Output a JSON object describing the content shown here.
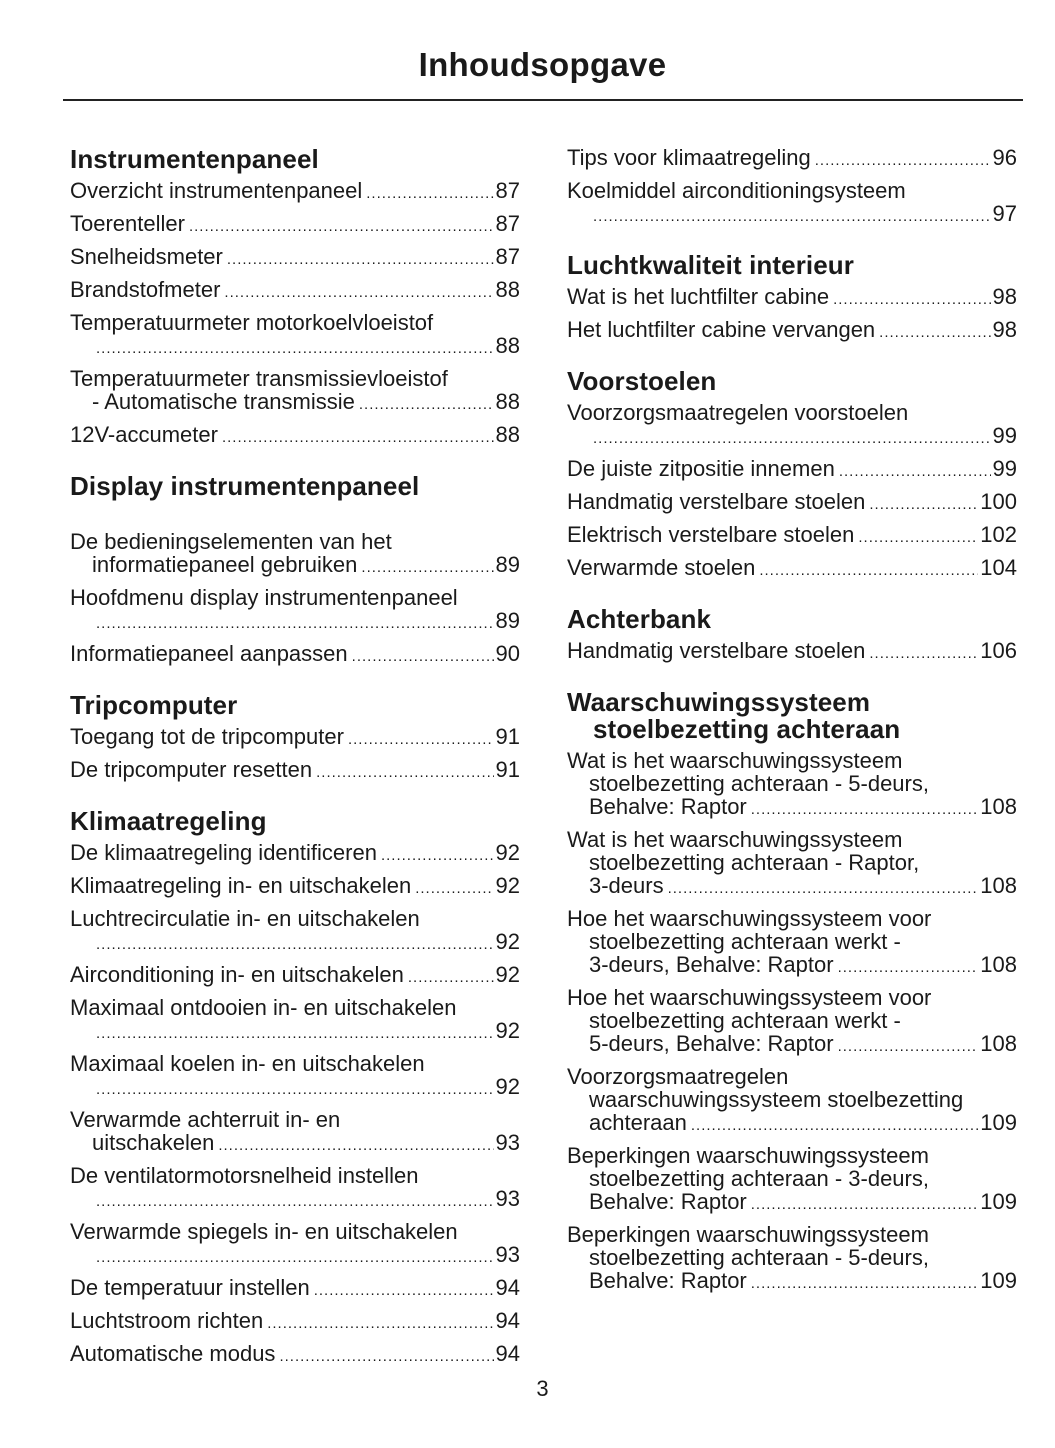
{
  "title": "Inhoudsopgave",
  "page_number": "3",
  "columns": [
    [
      {
        "heading": [
          "Instrumentenpaneel"
        ],
        "entries": [
          {
            "lines": [
              "Overzicht instrumentenpaneel"
            ],
            "page": "87"
          },
          {
            "lines": [
              "Toerenteller"
            ],
            "page": "87"
          },
          {
            "lines": [
              "Snelheidsmeter"
            ],
            "page": "87"
          },
          {
            "lines": [
              "Brandstofmeter"
            ],
            "page": "88"
          },
          {
            "lines": [
              "Temperatuurmeter motorkoelvloeistof",
              ""
            ],
            "page": "88"
          },
          {
            "lines": [
              "Temperatuurmeter transmissievloeistof",
              "- Automatische transmissie"
            ],
            "page": "88"
          },
          {
            "lines": [
              "12V-accumeter"
            ],
            "page": "88"
          }
        ]
      },
      {
        "heading": [
          "Display instrumentenpaneel"
        ],
        "extra": true,
        "entries": [
          {
            "lines": [
              "De bedieningselementen van het",
              "informatiepaneel gebruiken"
            ],
            "page": "89"
          },
          {
            "lines": [
              "Hoofdmenu display instrumentenpaneel",
              ""
            ],
            "page": "89"
          },
          {
            "lines": [
              "Informatiepaneel aanpassen"
            ],
            "page": "90"
          }
        ]
      },
      {
        "heading": [
          "Tripcomputer"
        ],
        "entries": [
          {
            "lines": [
              "Toegang tot de tripcomputer"
            ],
            "page": "91"
          },
          {
            "lines": [
              "De tripcomputer resetten"
            ],
            "page": "91"
          }
        ]
      },
      {
        "heading": [
          "Klimaatregeling"
        ],
        "entries": [
          {
            "lines": [
              "De klimaatregeling identificeren"
            ],
            "page": "92"
          },
          {
            "lines": [
              "Klimaatregeling in- en uitschakelen"
            ],
            "page": "92"
          },
          {
            "lines": [
              "Luchtrecirculatie in- en uitschakelen",
              ""
            ],
            "page": "92"
          },
          {
            "lines": [
              "Airconditioning in- en uitschakelen"
            ],
            "page": "92"
          },
          {
            "lines": [
              "Maximaal ontdooien in- en uitschakelen",
              ""
            ],
            "page": "92"
          },
          {
            "lines": [
              "Maximaal koelen in- en uitschakelen",
              ""
            ],
            "page": "92"
          },
          {
            "lines": [
              "Verwarmde achterruit in- en",
              "uitschakelen"
            ],
            "page": "93"
          },
          {
            "lines": [
              "De ventilatormotorsnelheid instellen",
              ""
            ],
            "page": "93"
          },
          {
            "lines": [
              "Verwarmde spiegels in- en uitschakelen",
              ""
            ],
            "page": "93"
          },
          {
            "lines": [
              "De temperatuur instellen"
            ],
            "page": "94"
          },
          {
            "lines": [
              "Luchtstroom richten"
            ],
            "page": "94"
          },
          {
            "lines": [
              "Automatische modus"
            ],
            "page": "94"
          }
        ]
      }
    ],
    [
      {
        "heading": [],
        "entries": [
          {
            "lines": [
              "Tips voor klimaatregeling"
            ],
            "page": "96"
          },
          {
            "lines": [
              "Koelmiddel airconditioningsysteem",
              ""
            ],
            "page": "97"
          }
        ]
      },
      {
        "heading": [
          "Luchtkwaliteit interieur"
        ],
        "entries": [
          {
            "lines": [
              "Wat is het luchtfilter cabine"
            ],
            "page": "98"
          },
          {
            "lines": [
              "Het luchtfilter cabine vervangen"
            ],
            "page": "98"
          }
        ]
      },
      {
        "heading": [
          "Voorstoelen"
        ],
        "entries": [
          {
            "lines": [
              "Voorzorgsmaatregelen voorstoelen",
              ""
            ],
            "page": "99"
          },
          {
            "lines": [
              "De juiste zitpositie innemen"
            ],
            "page": "99"
          },
          {
            "lines": [
              "Handmatig verstelbare stoelen"
            ],
            "page": "100"
          },
          {
            "lines": [
              "Elektrisch verstelbare stoelen"
            ],
            "page": "102"
          },
          {
            "lines": [
              "Verwarmde stoelen"
            ],
            "page": "104"
          }
        ]
      },
      {
        "heading": [
          "Achterbank"
        ],
        "entries": [
          {
            "lines": [
              "Handmatig verstelbare stoelen"
            ],
            "page": "106"
          }
        ]
      },
      {
        "heading": [
          "Waarschuwingssysteem",
          "stoelbezetting achteraan"
        ],
        "entries": [
          {
            "lines": [
              "Wat is het waarschuwingssysteem",
              "stoelbezetting achteraan - 5-deurs,",
              "Behalve: Raptor"
            ],
            "page": "108"
          },
          {
            "lines": [
              "Wat is het waarschuwingssysteem",
              "stoelbezetting achteraan - Raptor,",
              "3-deurs"
            ],
            "page": "108"
          },
          {
            "lines": [
              "Hoe het waarschuwingssysteem voor",
              "stoelbezetting achteraan werkt -",
              "3-deurs, Behalve: Raptor"
            ],
            "page": "108"
          },
          {
            "lines": [
              "Hoe het waarschuwingssysteem voor",
              "stoelbezetting achteraan werkt -",
              "5-deurs, Behalve: Raptor"
            ],
            "page": "108"
          },
          {
            "lines": [
              "Voorzorgsmaatregelen",
              "waarschuwingssysteem stoelbezetting",
              "achteraan"
            ],
            "page": "109"
          },
          {
            "lines": [
              "Beperkingen waarschuwingssysteem",
              "stoelbezetting achteraan - 3-deurs,",
              "Behalve: Raptor"
            ],
            "page": "109"
          },
          {
            "lines": [
              "Beperkingen waarschuwingssysteem",
              "stoelbezetting achteraan - 5-deurs,",
              "Behalve: Raptor"
            ],
            "page": "109"
          }
        ]
      }
    ]
  ]
}
